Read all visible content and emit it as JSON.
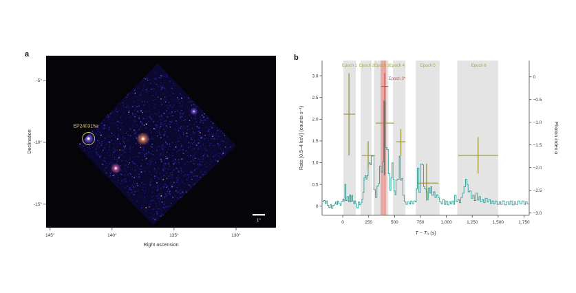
{
  "panel_a": {
    "label": "a"
  },
  "panel_b": {
    "label": "b"
  },
  "style": {
    "teal": "#2f9e97",
    "olive": "#9b9330",
    "olive_label": "#a3a04e",
    "red": "#c4524e",
    "red_band": "#eba6a2",
    "gray_band": "#e4e4e4",
    "dark_errbar": "#56584f",
    "axis_text": "#333333",
    "tick_color": "#444444",
    "sky_background": "#040409",
    "field_base": "#0b0830",
    "annotation_yellow": "#e5d288",
    "circle_yellow": "#d9c87a",
    "scalebar_white": "#ffffff"
  },
  "chart_data": [
    {
      "type": "scatter",
      "xlabel": "Right ascension",
      "ylabel": "Declination",
      "xlim": [
        145.32,
        126.78
      ],
      "ylim": [
        -16.9,
        -3.0
      ],
      "x_ticks": [
        145,
        140,
        135,
        130
      ],
      "x_tick_labels": [
        "145°",
        "140°",
        "135°",
        "130°"
      ],
      "y_ticks": [
        -5,
        -10,
        -15
      ],
      "y_tick_labels": [
        "-5°",
        "-10°",
        "-15°"
      ],
      "grid": false,
      "fov_diamond_radec": [
        [
          136.3,
          -3.6
        ],
        [
          130.0,
          -10.3
        ],
        [
          136.7,
          -16.7
        ],
        [
          142.8,
          -10.3
        ]
      ],
      "points": [
        {
          "name": "EP240315a",
          "ra": 141.9,
          "dec": -9.7,
          "brightness": 0.75,
          "core": "#ffffff",
          "halo": "#7a5ce0"
        },
        {
          "name": "bright-central-source",
          "ra": 137.5,
          "dec": -9.72,
          "brightness": 1.0,
          "core": "#fff2e0",
          "halo": "#e07a50"
        },
        {
          "name": "secondary-source",
          "ra": 139.7,
          "dec": -12.1,
          "brightness": 0.65,
          "core": "#ffe0ec",
          "halo": "#c05a9a"
        },
        {
          "name": "faint-source",
          "ra": 133.4,
          "dec": -7.5,
          "brightness": 0.35,
          "core": "#d0b8ff",
          "halo": "#6a4ac0"
        }
      ],
      "annotation": {
        "label": "EP240315a",
        "ra": 141.9,
        "dec": -9.7,
        "circle_radius_px": 9
      },
      "scalebar": {
        "label": "1°",
        "width_deg": 1
      },
      "noise": {
        "count": 1700,
        "seed": 7,
        "colors": [
          {
            "c": "#1c1566",
            "w": 30
          },
          {
            "c": "#241b82",
            "w": 22
          },
          {
            "c": "#2f229c",
            "w": 16
          },
          {
            "c": "#3c2cb4",
            "w": 10
          },
          {
            "c": "#120d48",
            "w": 12
          },
          {
            "c": "#5a44c8",
            "w": 5
          },
          {
            "c": "#8a6ee0",
            "w": 2.5
          },
          {
            "c": "#b894f0",
            "w": 1
          },
          {
            "c": "#c8663e",
            "w": 0.8
          },
          {
            "c": "#e0a0d0",
            "w": 0.7
          }
        ]
      }
    },
    {
      "type": "line",
      "xlabel": "T − T₀ (s)",
      "ylabel_left": "Rate [0.5–4 keV] (counts s⁻¹)",
      "ylabel_right": "Photon index α",
      "xlim": [
        -200,
        1800
      ],
      "ylim_left": [
        -0.21,
        3.35
      ],
      "ylim_right": [
        -3.05,
        0.36
      ],
      "x_ticks": [
        0,
        250,
        500,
        750,
        1000,
        1250,
        1500,
        1750
      ],
      "x_tick_labels": [
        "0",
        "250",
        "500",
        "750",
        "1,000",
        "1,250",
        "1,500",
        "1,750"
      ],
      "y_ticks_left": [
        0,
        0.5,
        1.0,
        1.5,
        2.0,
        2.5,
        3.0
      ],
      "y_tick_labels_left": [
        "0",
        "0.5",
        "1.0",
        "1.5",
        "2.0",
        "2.5",
        "3.0"
      ],
      "y_ticks_right": [
        0,
        -0.5,
        -1.0,
        -1.5,
        -2.0,
        -2.5,
        -3.0
      ],
      "y_tick_labels_right": [
        "0",
        "−0.5",
        "−1.0",
        "−1.5",
        "−2.0",
        "−2.5",
        "−3.0"
      ],
      "grid": false,
      "epochs": [
        {
          "label": "Epoch 1",
          "label_t": 66,
          "band": [
            5,
            125
          ],
          "index": {
            "t": 60,
            "t_err": [
              8,
              120
            ],
            "alpha": -0.82,
            "alpha_err": [
              0.08,
              -1.73
            ]
          }
        },
        {
          "label": "Epoch 2",
          "label_t": 232,
          "band": [
            172,
            278
          ],
          "index": {
            "t": 245,
            "t_err": [
              185,
              310
            ],
            "alpha": -1.73,
            "alpha_err": [
              -1.42,
              -2.02
            ]
          }
        },
        {
          "label": "Epoch 3",
          "label_t": 378,
          "band": [
            300,
            440
          ],
          "index": {
            "t": 404,
            "t_err": [
              318,
              495
            ],
            "alpha": -1.02,
            "alpha_err": [
              -0.53,
              -2.17
            ]
          },
          "vbar_dark": true
        },
        {
          "label": "Epoch 4",
          "label_t": 524,
          "band": [
            485,
            605
          ],
          "index": {
            "t": 561,
            "t_err": [
              517,
              605
            ],
            "alpha": -1.43,
            "alpha_err": [
              -1.15,
              -1.74
            ]
          }
        },
        {
          "label": "Epoch 5",
          "label_t": 822,
          "band": [
            705,
            935
          ],
          "index": {
            "t": 809,
            "t_err": [
              716,
              922
            ],
            "alpha": -2.34,
            "alpha_err": [
              -1.91,
              -2.73
            ]
          }
        },
        {
          "label": "Epoch 6",
          "label_t": 1313,
          "band": [
            1105,
            1500
          ],
          "index": {
            "t": 1306,
            "t_err": [
              1114,
              1500
            ],
            "alpha": -1.73,
            "alpha_err": [
              -1.33,
              -2.13
            ]
          }
        }
      ],
      "special_epoch": {
        "label": "Epoch 3*",
        "label_t": 443,
        "band": [
          365,
          420
        ],
        "index": {
          "t": 405,
          "t_err": [
            370,
            440
          ],
          "alpha": -0.21,
          "alpha_err": [
            0.08,
            -0.53
          ]
        }
      },
      "series": [
        {
          "name": "rate-lightcurve",
          "type": "step",
          "points": [
            [
              -200,
              0.1
            ],
            [
              -185,
              0.13
            ],
            [
              -170,
              0.06
            ],
            [
              -160,
              0.12
            ],
            [
              -150,
              0.02
            ],
            [
              -135,
              -0.03
            ],
            [
              -120,
              0.04
            ],
            [
              -110,
              -0.05
            ],
            [
              -95,
              0.02
            ],
            [
              -80,
              0.05
            ],
            [
              -70,
              0.1
            ],
            [
              -60,
              0.04
            ],
            [
              -50,
              0.12
            ],
            [
              -40,
              0.06
            ],
            [
              -25,
              0.02
            ],
            [
              -15,
              0.1
            ],
            [
              0,
              0.16
            ],
            [
              10,
              0.12
            ],
            [
              20,
              0.5
            ],
            [
              30,
              0.13
            ],
            [
              40,
              0.22
            ],
            [
              55,
              0.1
            ],
            [
              65,
              0.26
            ],
            [
              75,
              0.1
            ],
            [
              85,
              0.25
            ],
            [
              95,
              0.12
            ],
            [
              105,
              0.06
            ],
            [
              115,
              0.12
            ],
            [
              125,
              0.05
            ],
            [
              135,
              -0.04
            ],
            [
              150,
              0.1
            ],
            [
              160,
              0.03
            ],
            [
              175,
              0.08
            ],
            [
              185,
              0.16
            ],
            [
              195,
              0.32
            ],
            [
              205,
              0.65
            ],
            [
              215,
              0.7
            ],
            [
              225,
              0.62
            ],
            [
              235,
              0.7
            ],
            [
              245,
              0.98
            ],
            [
              255,
              1.0
            ],
            [
              265,
              0.95
            ],
            [
              275,
              1.15
            ],
            [
              290,
              1.17
            ],
            [
              300,
              0.38
            ],
            [
              315,
              0.2
            ],
            [
              330,
              0.46
            ],
            [
              345,
              0.52
            ],
            [
              355,
              0.92
            ],
            [
              370,
              0.78
            ],
            [
              385,
              1.02
            ],
            [
              395,
              2.42
            ],
            [
              410,
              1.35
            ],
            [
              425,
              1.3
            ],
            [
              440,
              0.75
            ],
            [
              455,
              0.36
            ],
            [
              465,
              0.65
            ],
            [
              475,
              1.0
            ],
            [
              485,
              0.62
            ],
            [
              495,
              0.35
            ],
            [
              505,
              0.26
            ],
            [
              515,
              0.6
            ],
            [
              530,
              0.62
            ],
            [
              545,
              1.15
            ],
            [
              555,
              0.6
            ],
            [
              570,
              0.64
            ],
            [
              580,
              0.25
            ],
            [
              595,
              0.1
            ],
            [
              610,
              0.04
            ],
            [
              625,
              0.1
            ],
            [
              640,
              0.05
            ],
            [
              655,
              0.12
            ],
            [
              670,
              0.05
            ],
            [
              685,
              0.12
            ],
            [
              700,
              0.1
            ],
            [
              710,
              0.4
            ],
            [
              720,
              0.87
            ],
            [
              735,
              0.32
            ],
            [
              750,
              0.97
            ],
            [
              770,
              0.95
            ],
            [
              780,
              0.45
            ],
            [
              790,
              0.4
            ],
            [
              805,
              0.33
            ],
            [
              815,
              0.15
            ],
            [
              825,
              0.42
            ],
            [
              840,
              0.3
            ],
            [
              850,
              0.45
            ],
            [
              860,
              0.25
            ],
            [
              875,
              0.33
            ],
            [
              890,
              0.2
            ],
            [
              905,
              0.26
            ],
            [
              920,
              0.2
            ],
            [
              935,
              0.1
            ],
            [
              950,
              0.05
            ],
            [
              965,
              0.15
            ],
            [
              980,
              0.04
            ],
            [
              995,
              0.12
            ],
            [
              1010,
              0.03
            ],
            [
              1025,
              0.1
            ],
            [
              1040,
              0.05
            ],
            [
              1055,
              0.12
            ],
            [
              1070,
              0.04
            ],
            [
              1080,
              0.25
            ],
            [
              1095,
              0.1
            ],
            [
              1110,
              0.15
            ],
            [
              1125,
              0.08
            ],
            [
              1140,
              0.2
            ],
            [
              1155,
              0.3
            ],
            [
              1170,
              0.45
            ],
            [
              1185,
              0.62
            ],
            [
              1200,
              0.5
            ],
            [
              1210,
              0.33
            ],
            [
              1225,
              0.35
            ],
            [
              1240,
              0.18
            ],
            [
              1255,
              0.25
            ],
            [
              1270,
              0.13
            ],
            [
              1285,
              0.3
            ],
            [
              1300,
              0.14
            ],
            [
              1315,
              0.22
            ],
            [
              1330,
              0.1
            ],
            [
              1345,
              0.15
            ],
            [
              1360,
              0.08
            ],
            [
              1375,
              0.18
            ],
            [
              1395,
              0.1
            ],
            [
              1410,
              0.15
            ],
            [
              1425,
              0.06
            ],
            [
              1440,
              0.12
            ],
            [
              1455,
              0.05
            ],
            [
              1470,
              0.12
            ],
            [
              1490,
              0.04
            ],
            [
              1510,
              0.1
            ],
            [
              1525,
              0.04
            ],
            [
              1540,
              0.12
            ],
            [
              1560,
              0.03
            ],
            [
              1580,
              0.1
            ],
            [
              1600,
              0.04
            ],
            [
              1615,
              0.12
            ],
            [
              1635,
              0.03
            ],
            [
              1655,
              0.1
            ],
            [
              1670,
              0.04
            ],
            [
              1690,
              0.12
            ],
            [
              1710,
              0.05
            ],
            [
              1730,
              0.12
            ],
            [
              1750,
              0.04
            ],
            [
              1765,
              0.1
            ],
            [
              1780,
              0.05
            ],
            [
              1800,
              0.05
            ]
          ]
        }
      ]
    }
  ]
}
